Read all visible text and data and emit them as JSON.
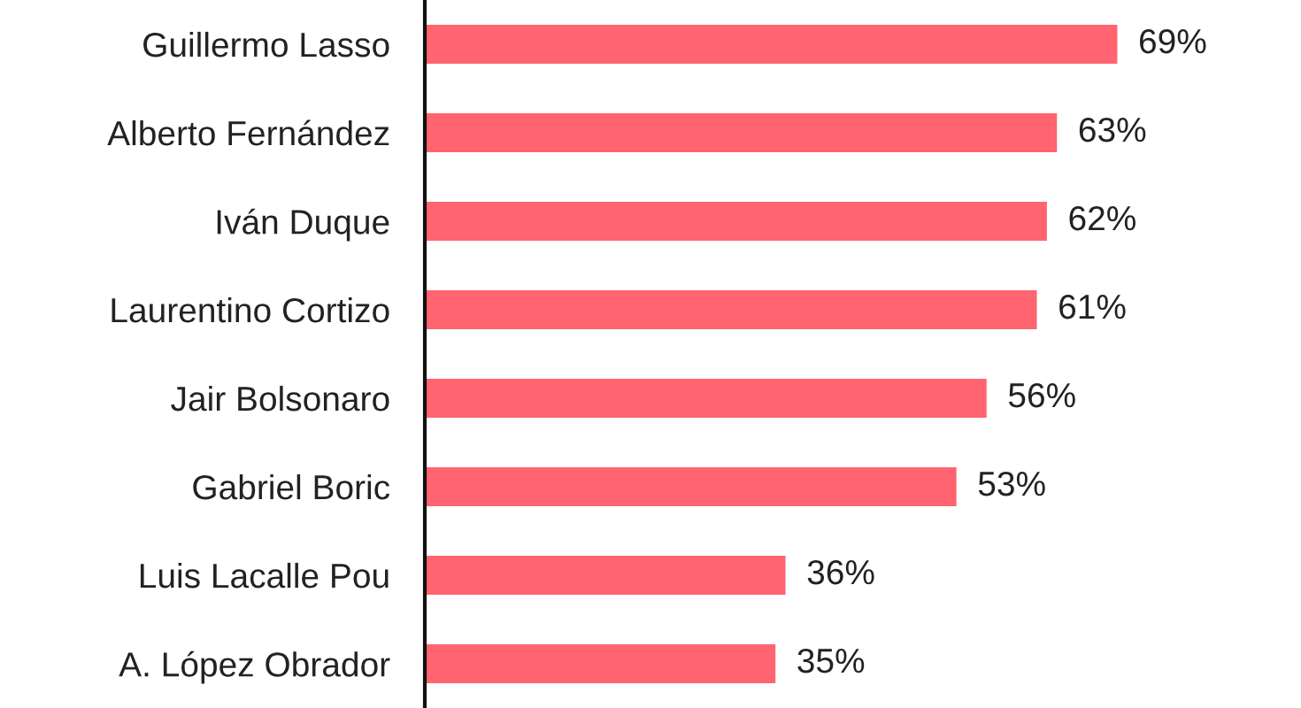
{
  "chart_data": {
    "type": "bar",
    "orientation": "horizontal",
    "categories": [
      "Guillermo Lasso",
      "Alberto Fernández",
      "Iván Duque",
      "Laurentino Cortizo",
      "Jair Bolsonaro",
      "Gabriel Boric",
      "Luis Lacalle Pou",
      "A. López Obrador"
    ],
    "values": [
      69,
      63,
      62,
      61,
      56,
      53,
      36,
      35
    ],
    "value_labels": [
      "69%",
      "63%",
      "62%",
      "61%",
      "56%",
      "53%",
      "36%",
      "35%"
    ],
    "color": "#ff6470",
    "grid": false,
    "legend": false
  }
}
